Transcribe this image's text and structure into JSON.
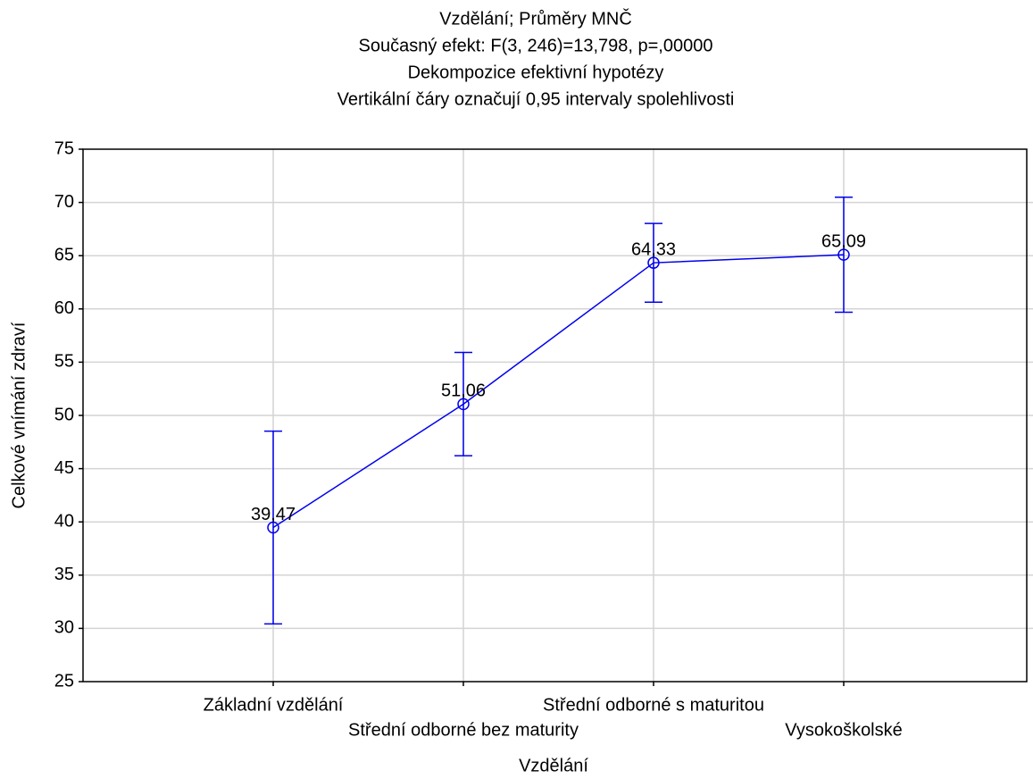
{
  "chart_data": {
    "type": "line",
    "title": "Vzdělání; Průměry MNČ",
    "subtitle": [
      "Současný efekt: F(3, 246)=13,798, p=,00000",
      "Dekompozice efektivní hypotézy",
      "Vertikální čáry označují 0,95 intervaly spolehlivosti"
    ],
    "x_label": "Vzdělání",
    "y_label": "Celkové vnímání zdraví",
    "categories": [
      "Základní vzdělání",
      "Střední odborné bez maturity",
      "Střední odborné s maturitou",
      "Vysokoškolské"
    ],
    "values": [
      39.47,
      51.06,
      64.33,
      65.09
    ],
    "value_labels": [
      "39,47",
      "51,06",
      "64,33",
      "65,09"
    ],
    "errors": [
      9.05,
      4.85,
      3.7,
      5.4
    ],
    "color": "#0000ee",
    "ylim": [
      25,
      75
    ],
    "yticks": [
      25,
      30,
      35,
      40,
      45,
      50,
      55,
      60,
      65,
      70,
      75
    ],
    "grid": true
  }
}
